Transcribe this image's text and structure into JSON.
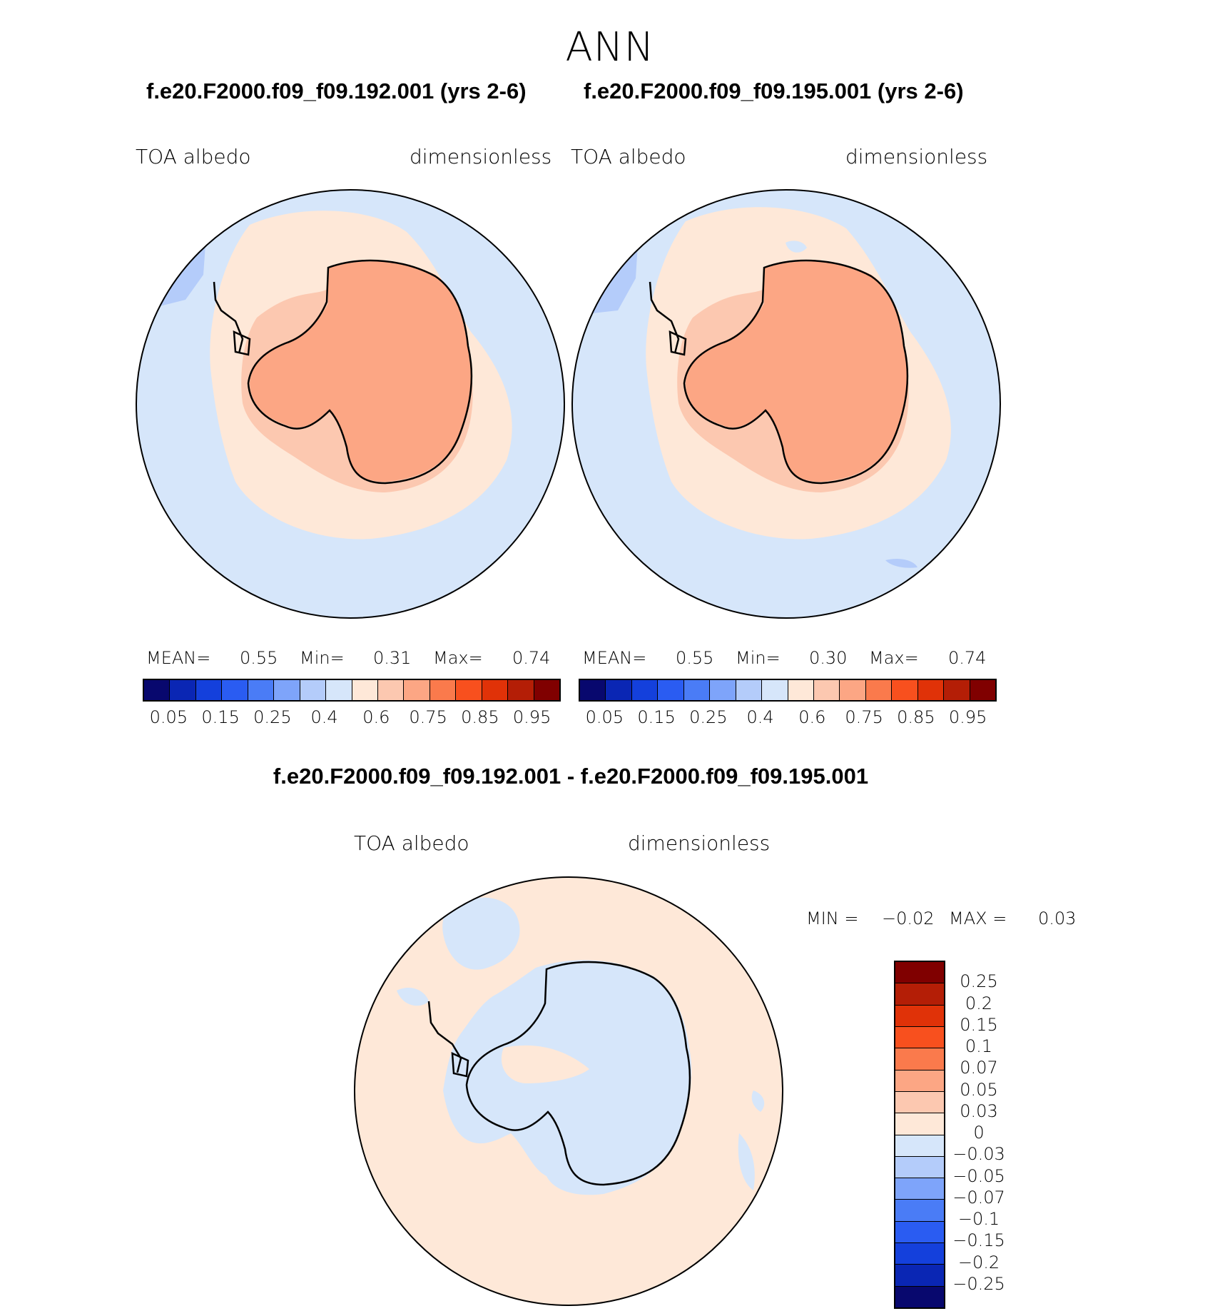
{
  "title": "ANN",
  "panels": [
    {
      "case": "f.e20.F2000.f09_f09.192.001 (yrs 2-6)",
      "variable": "TOA  albedo",
      "units": "dimensionless",
      "mean_label": "MEAN=",
      "mean": "0.55",
      "min_label": "Min=",
      "min": "0.31",
      "max_label": "Max=",
      "max": "0.74"
    },
    {
      "case": "f.e20.F2000.f09_f09.195.001 (yrs 2-6)",
      "variable": "TOA  albedo",
      "units": "dimensionless",
      "mean_label": "MEAN=",
      "mean": "0.55",
      "min_label": "Min=",
      "min": "0.30",
      "max_label": "Max=",
      "max": "0.74"
    }
  ],
  "colorbar": {
    "ticks": [
      "0.05",
      "0.15",
      "0.25",
      "0.4",
      "0.6",
      "0.75",
      "0.85",
      "0.95"
    ],
    "colors": [
      "#08086e",
      "#0a26b4",
      "#1440dc",
      "#2a5cf2",
      "#4a7cf6",
      "#7ea4fa",
      "#b4ccfa",
      "#d6e6fa",
      "#fee8d8",
      "#fcc8b0",
      "#fca684",
      "#fa7a4c",
      "#f8501e",
      "#e03208",
      "#b41e06",
      "#800000"
    ]
  },
  "difference": {
    "title": "f.e20.F2000.f09_f09.192.001 - f.e20.F2000.f09_f09.195.001",
    "variable": "TOA  albedo",
    "units": "dimensionless",
    "min_label": "MIN =",
    "min": "−0.02",
    "max_label": "MAX =",
    "max": "0.03",
    "ticks": [
      "0.25",
      "0.2",
      "0.15",
      "0.1",
      "0.07",
      "0.05",
      "0.03",
      "0",
      "−0.03",
      "−0.05",
      "−0.07",
      "−0.1",
      "−0.15",
      "−0.2",
      "−0.25"
    ],
    "colors": [
      "#800000",
      "#b41e06",
      "#e03208",
      "#f8501e",
      "#fa7a4c",
      "#fca684",
      "#fcc8b0",
      "#fee8d8",
      "#d6e6fa",
      "#b4ccfa",
      "#7ea4fa",
      "#4a7cf6",
      "#2a5cf2",
      "#1440dc",
      "#0a26b4",
      "#08086e"
    ]
  },
  "map_colors": {
    "ocean": "#d6e6fa",
    "sea_ice_band": "#fee8d8",
    "coastal_band": "#fcc8b0",
    "ice_sheet": "#fca684",
    "low_patch": "#b4ccfa",
    "diff_positive": "#fee8d8",
    "diff_negative": "#d6e6fa"
  }
}
